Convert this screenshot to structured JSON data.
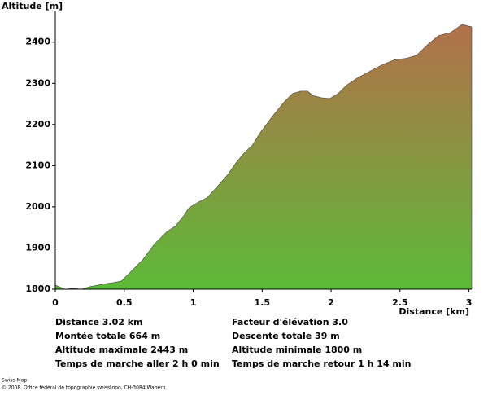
{
  "chart_data": {
    "type": "area",
    "y_label": "Altitude [m]",
    "x_label": "Distance [km]",
    "x": [
      0,
      0.07,
      0.13,
      0.19,
      0.25,
      0.34,
      0.42,
      0.48,
      0.54,
      0.63,
      0.72,
      0.81,
      0.87,
      0.93,
      0.97,
      1.04,
      1.1,
      1.16,
      1.25,
      1.31,
      1.37,
      1.43,
      1.49,
      1.58,
      1.66,
      1.72,
      1.78,
      1.83,
      1.87,
      1.93,
      1.99,
      2.05,
      2.11,
      2.19,
      2.28,
      2.37,
      2.46,
      2.55,
      2.62,
      2.7,
      2.78,
      2.87,
      2.95,
      3.02
    ],
    "values": [
      1810,
      1800,
      1802,
      1800,
      1806,
      1812,
      1816,
      1820,
      1840,
      1870,
      1910,
      1940,
      1953,
      1978,
      1998,
      2012,
      2022,
      2044,
      2078,
      2107,
      2131,
      2150,
      2182,
      2222,
      2255,
      2275,
      2281,
      2281,
      2270,
      2265,
      2263,
      2275,
      2295,
      2313,
      2329,
      2345,
      2357,
      2361,
      2368,
      2394,
      2416,
      2424,
      2443,
      2437
    ],
    "gradient_colors": [
      "#5cba38",
      "#b3704a"
    ],
    "xlim": [
      0,
      3.02
    ],
    "ylim": [
      1800,
      2443
    ],
    "xticks": [
      0,
      0.5,
      1,
      1.5,
      2,
      2.5,
      3
    ],
    "yticks": [
      1800,
      1900,
      2000,
      2100,
      2200,
      2300,
      2400
    ]
  },
  "stats": {
    "left": [
      "Distance 3.02 km",
      "Montée totale  664 m",
      "Altitude maximale  2443 m",
      "Temps de marche aller  2 h 0 min"
    ],
    "right": [
      "Facteur d'élévation 3.0",
      "Descente totale  39 m",
      "Altitude minimale  1800 m",
      "Temps de marche retour  1 h 14 min"
    ]
  },
  "footer": [
    "Swiss Map",
    "© 2008. Office fédéral de topographie swisstopo, CH-3084 Wabern"
  ]
}
